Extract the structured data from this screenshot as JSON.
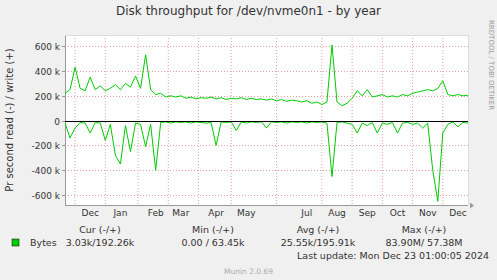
{
  "chart_data": {
    "type": "line",
    "title": "Disk throughput for /dev/nvme0n1 - by year",
    "y_label": "Pr second read (-) / write (+)",
    "watermark": "RRDTOOL / TOBI OETIKER",
    "categories": [
      null,
      null,
      null,
      null,
      null,
      "Dec",
      null,
      null,
      null,
      null,
      null,
      "Jan",
      null,
      null,
      null,
      null,
      null,
      null,
      "Feb",
      null,
      null,
      null,
      null,
      "Mar",
      null,
      null,
      null,
      null,
      null,
      null,
      "Apr",
      null,
      null,
      null,
      null,
      null,
      "May",
      null,
      null,
      null,
      null,
      null,
      null,
      null,
      null,
      null,
      null,
      null,
      "Jul",
      null,
      null,
      null,
      null,
      null,
      "Aug",
      null,
      null,
      null,
      null,
      null,
      "Sep",
      null,
      null,
      null,
      null,
      null,
      "Oct",
      null,
      null,
      null,
      null,
      null,
      "Nov",
      null,
      null,
      null,
      null,
      null,
      "Dec",
      null,
      null
    ],
    "series": [
      {
        "name": "Bytes",
        "color": "#00cc00",
        "values": [
          220000,
          250000,
          430000,
          260000,
          240000,
          350000,
          250000,
          280000,
          240000,
          260000,
          290000,
          250000,
          300000,
          270000,
          360000,
          260000,
          530000,
          250000,
          210000,
          220000,
          190000,
          200000,
          190000,
          200000,
          180000,
          190000,
          175000,
          185000,
          180000,
          190000,
          175000,
          185000,
          170000,
          180000,
          175000,
          185000,
          170000,
          180000,
          170000,
          175000,
          165000,
          175000,
          160000,
          170000,
          155000,
          165000,
          160000,
          150000,
          160000,
          140000,
          150000,
          130000,
          150000,
          610000,
          150000,
          120000,
          140000,
          180000,
          240000,
          200000,
          250000,
          190000,
          200000,
          210000,
          190000,
          200000,
          190000,
          210000,
          200000,
          220000,
          230000,
          240000,
          250000,
          240000,
          260000,
          320000,
          210000,
          200000,
          210000,
          200000,
          205000
        ]
      },
      {
        "color": "#00cc00",
        "values": [
          -20000,
          -140000,
          -60000,
          -15000,
          -20000,
          -100000,
          -15000,
          -20000,
          -160000,
          -30000,
          -280000,
          -350000,
          -40000,
          -250000,
          -20000,
          -30000,
          -210000,
          -30000,
          -400000,
          -15000,
          -10000,
          -20000,
          -10000,
          -15000,
          -10000,
          -20000,
          -10000,
          -15000,
          -20000,
          -15000,
          -200000,
          -10000,
          -15000,
          -10000,
          -80000,
          -10000,
          -20000,
          -10000,
          -15000,
          -10000,
          -60000,
          -10000,
          -15000,
          -10000,
          -20000,
          -10000,
          -15000,
          -10000,
          -20000,
          -10000,
          -15000,
          -10000,
          -20000,
          -450000,
          -15000,
          -10000,
          -20000,
          -30000,
          -100000,
          -20000,
          -40000,
          -15000,
          -100000,
          -20000,
          -30000,
          -15000,
          -100000,
          -20000,
          -15000,
          -30000,
          -20000,
          -60000,
          -20000,
          -400000,
          -650000,
          -100000,
          -30000,
          -10000,
          -50000,
          -15000,
          -20000
        ]
      }
    ],
    "ylim": [
      -680000,
      690000
    ],
    "yticks": [
      {
        "value": -600000,
        "label": "-600 k"
      },
      {
        "value": -400000,
        "label": "-400 k"
      },
      {
        "value": -200000,
        "label": "-200 k"
      },
      0,
      {
        "value": 200000,
        "label": "200 k"
      },
      {
        "value": 400000,
        "label": "400 k"
      },
      {
        "value": 600000,
        "label": "600 k"
      }
    ],
    "grid": true,
    "summary": {
      "headers": [
        "Cur (-/+)",
        "Min (-/+)",
        "Avg (-/+)",
        "Max (-/+)"
      ],
      "rows": [
        {
          "label": "Bytes",
          "cells": [
            "3.03k/192.26k",
            "0.00 / 63.45k",
            "25.55k/195.91k",
            "83.90M/ 57.38M"
          ]
        }
      ]
    },
    "last_update": "Last update: Mon Dec 23 01:00:05 2024",
    "footer": "Munin 2.0.69"
  }
}
